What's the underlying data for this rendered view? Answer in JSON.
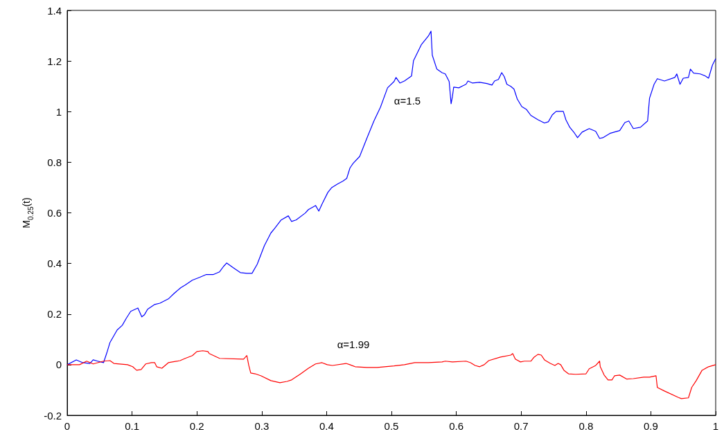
{
  "chart_data": {
    "type": "line",
    "ylabel": "M$_{0.25}$(t)",
    "xlim": [
      0,
      1
    ],
    "ylim": [
      -0.2,
      1.4
    ],
    "xticks": [
      0,
      0.1,
      0.2,
      0.3,
      0.4,
      0.5,
      0.6,
      0.7,
      0.8,
      0.9,
      1
    ],
    "yticks": [
      -0.2,
      0,
      0.2,
      0.4,
      0.6,
      0.8,
      1,
      1.2,
      1.4
    ],
    "marker": "none",
    "line_style": "solid",
    "annotations": [
      "α=1.5",
      "α=1.99"
    ],
    "series": [
      {
        "color": "#0000ff",
        "x": [
          0,
          0.014,
          0.024,
          0.035,
          0.04,
          0.047,
          0.056,
          0.061,
          0.066,
          0.077,
          0.085,
          0.091,
          0.098,
          0.109,
          0.115,
          0.119,
          0.124,
          0.135,
          0.143,
          0.156,
          0.165,
          0.175,
          0.182,
          0.193,
          0.204,
          0.214,
          0.225,
          0.235,
          0.241,
          0.246,
          0.256,
          0.267,
          0.277,
          0.285,
          0.293,
          0.304,
          0.314,
          0.32,
          0.33,
          0.341,
          0.346,
          0.353,
          0.367,
          0.372,
          0.383,
          0.388,
          0.393,
          0.402,
          0.408,
          0.417,
          0.425,
          0.431,
          0.436,
          0.441,
          0.451,
          0.462,
          0.473,
          0.483,
          0.494,
          0.504,
          0.507,
          0.513,
          0.52,
          0.531,
          0.534,
          0.546,
          0.557,
          0.561,
          0.563,
          0.57,
          0.578,
          0.583,
          0.589,
          0.592,
          0.594,
          0.596,
          0.604,
          0.61,
          0.615,
          0.618,
          0.625,
          0.636,
          0.647,
          0.655,
          0.659,
          0.665,
          0.67,
          0.674,
          0.678,
          0.684,
          0.689,
          0.694,
          0.701,
          0.708,
          0.715,
          0.726,
          0.736,
          0.742,
          0.748,
          0.754,
          0.765,
          0.769,
          0.775,
          0.782,
          0.787,
          0.794,
          0.805,
          0.815,
          0.821,
          0.826,
          0.837,
          0.852,
          0.86,
          0.866,
          0.873,
          0.884,
          0.895,
          0.898,
          0.905,
          0.91,
          0.921,
          0.937,
          0.94,
          0.945,
          0.95,
          0.958,
          0.961,
          0.966,
          0.976,
          0.984,
          0.989,
          0.995,
          1.0
        ],
        "values": [
          0,
          0.019,
          0.008,
          0.005,
          0.019,
          0.014,
          0.008,
          0.046,
          0.088,
          0.137,
          0.156,
          0.183,
          0.211,
          0.224,
          0.189,
          0.197,
          0.219,
          0.238,
          0.243,
          0.26,
          0.282,
          0.304,
          0.315,
          0.334,
          0.345,
          0.356,
          0.356,
          0.367,
          0.388,
          0.402,
          0.383,
          0.364,
          0.361,
          0.361,
          0.397,
          0.47,
          0.52,
          0.539,
          0.572,
          0.588,
          0.566,
          0.572,
          0.599,
          0.613,
          0.629,
          0.607,
          0.635,
          0.681,
          0.7,
          0.714,
          0.725,
          0.736,
          0.777,
          0.796,
          0.823,
          0.894,
          0.963,
          1.017,
          1.094,
          1.119,
          1.135,
          1.113,
          1.121,
          1.141,
          1.201,
          1.264,
          1.299,
          1.318,
          1.223,
          1.168,
          1.154,
          1.149,
          1.119,
          1.031,
          1.059,
          1.097,
          1.094,
          1.102,
          1.108,
          1.121,
          1.113,
          1.116,
          1.111,
          1.105,
          1.121,
          1.127,
          1.154,
          1.138,
          1.108,
          1.1,
          1.089,
          1.05,
          1.02,
          1.009,
          0.985,
          0.968,
          0.955,
          0.96,
          0.987,
          1.001,
          1.001,
          0.968,
          0.938,
          0.916,
          0.897,
          0.919,
          0.933,
          0.922,
          0.894,
          0.897,
          0.914,
          0.925,
          0.957,
          0.963,
          0.933,
          0.938,
          0.963,
          1.053,
          1.108,
          1.13,
          1.121,
          1.135,
          1.149,
          1.108,
          1.132,
          1.135,
          1.168,
          1.152,
          1.149,
          1.141,
          1.132,
          1.184,
          1.209
        ]
      },
      {
        "color": "#ff0000",
        "x": [
          0,
          0.019,
          0.03,
          0.04,
          0.056,
          0.066,
          0.072,
          0.093,
          0.101,
          0.107,
          0.114,
          0.121,
          0.13,
          0.135,
          0.138,
          0.146,
          0.156,
          0.174,
          0.182,
          0.193,
          0.2,
          0.209,
          0.217,
          0.219,
          0.235,
          0.272,
          0.277,
          0.28,
          0.283,
          0.29,
          0.299,
          0.314,
          0.328,
          0.339,
          0.346,
          0.359,
          0.372,
          0.383,
          0.393,
          0.401,
          0.409,
          0.43,
          0.436,
          0.444,
          0.462,
          0.478,
          0.504,
          0.52,
          0.536,
          0.557,
          0.578,
          0.583,
          0.594,
          0.615,
          0.622,
          0.629,
          0.636,
          0.643,
          0.65,
          0.668,
          0.684,
          0.687,
          0.691,
          0.699,
          0.705,
          0.715,
          0.72,
          0.726,
          0.731,
          0.736,
          0.745,
          0.752,
          0.757,
          0.761,
          0.766,
          0.773,
          0.784,
          0.8,
          0.805,
          0.815,
          0.821,
          0.822,
          0.828,
          0.834,
          0.84,
          0.844,
          0.852,
          0.863,
          0.873,
          0.889,
          0.898,
          0.908,
          0.91,
          0.921,
          0.942,
          0.947,
          0.958,
          0.963,
          0.97,
          0.979,
          0.989,
          1.0
        ],
        "values": [
          0,
          0,
          0.014,
          0.003,
          0.014,
          0.016,
          0.005,
          0,
          -0.008,
          -0.022,
          -0.019,
          0.003,
          0.008,
          0.008,
          -0.008,
          -0.014,
          0.008,
          0.016,
          0.025,
          0.036,
          0.052,
          0.055,
          0.052,
          0.044,
          0.025,
          0.022,
          0.036,
          -0.003,
          -0.033,
          -0.036,
          -0.044,
          -0.063,
          -0.071,
          -0.066,
          -0.06,
          -0.038,
          -0.014,
          0.003,
          0.008,
          0,
          -0.003,
          0.005,
          0,
          -0.008,
          -0.011,
          -0.011,
          -0.005,
          0,
          0.008,
          0.008,
          0.011,
          0.014,
          0.011,
          0.014,
          0.008,
          -0.003,
          -0.008,
          0,
          0.016,
          0.03,
          0.038,
          0.044,
          0.022,
          0.011,
          0.014,
          0.014,
          0.03,
          0.041,
          0.038,
          0.019,
          0.005,
          -0.003,
          0.005,
          0,
          -0.022,
          -0.036,
          -0.038,
          -0.036,
          -0.016,
          -0.003,
          0.014,
          -0.008,
          -0.041,
          -0.06,
          -0.06,
          -0.044,
          -0.041,
          -0.057,
          -0.055,
          -0.049,
          -0.049,
          -0.044,
          -0.09,
          -0.104,
          -0.129,
          -0.134,
          -0.131,
          -0.09,
          -0.063,
          -0.022,
          -0.008,
          0
        ]
      }
    ]
  }
}
